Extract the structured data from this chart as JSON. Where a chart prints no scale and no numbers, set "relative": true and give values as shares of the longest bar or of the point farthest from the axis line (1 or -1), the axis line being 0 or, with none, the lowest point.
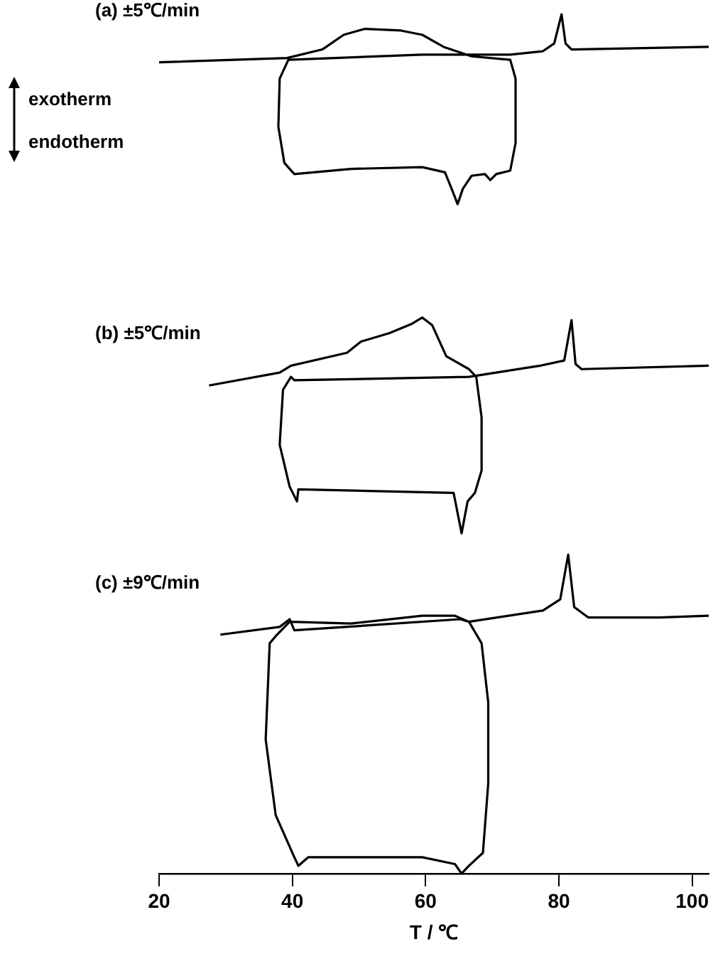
{
  "chart_data": {
    "type": "line",
    "relative": true,
    "xlabel": "T / ℃",
    "xlim": [
      20,
      102.5
    ],
    "xticks": [
      20,
      40,
      60,
      80,
      100
    ],
    "marker": "none",
    "line_style": "solid",
    "legend": false,
    "annotations": [
      "exotherm",
      "endotherm"
    ],
    "series": [
      {
        "name": "(a) ±5℃/min",
        "color": "#000000",
        "x": [
          20,
          39.2,
          44.5,
          47.7,
          50.9,
          56.3,
          59.5,
          62.7,
          66.9,
          72.7,
          73.5,
          73.5,
          72.7,
          70.6,
          69.7,
          68.9,
          66.9,
          65.6,
          64.8,
          63.9,
          62.9,
          59.5,
          48.8,
          40.3,
          38.8,
          37.9,
          38.1,
          39.4,
          59.5,
          72.7,
          77.6,
          79.3,
          80.4,
          81,
          81.9,
          102.5
        ],
        "values": [
          0.944,
          0.949,
          0.959,
          0.976,
          0.983,
          0.981,
          0.976,
          0.962,
          0.951,
          0.947,
          0.925,
          0.85,
          0.818,
          0.814,
          0.807,
          0.814,
          0.812,
          0.797,
          0.779,
          0.797,
          0.816,
          0.822,
          0.82,
          0.814,
          0.827,
          0.869,
          0.925,
          0.947,
          0.953,
          0.953,
          0.957,
          0.966,
          1,
          0.966,
          0.959,
          0.962
        ]
      },
      {
        "name": "(b) ±5℃/min",
        "color": "#000000",
        "x": [
          27.5,
          38.1,
          39.8,
          48.2,
          50.3,
          54.6,
          58,
          59.5,
          61,
          63.1,
          66.5,
          67.6,
          68.4,
          68.4,
          67.4,
          66.3,
          65.4,
          64.2,
          40.9,
          40.7,
          39.6,
          38.1,
          38.6,
          39.8,
          40.3,
          66.5,
          77.2,
          80.8,
          81.9,
          82.5,
          83.4,
          102.5
        ],
        "values": [
          0.568,
          0.583,
          0.591,
          0.606,
          0.619,
          0.629,
          0.64,
          0.647,
          0.638,
          0.602,
          0.587,
          0.578,
          0.531,
          0.469,
          0.443,
          0.433,
          0.396,
          0.443,
          0.447,
          0.433,
          0.45,
          0.499,
          0.563,
          0.578,
          0.574,
          0.578,
          0.591,
          0.597,
          0.644,
          0.593,
          0.587,
          0.591
        ]
      },
      {
        "name": "(c) ±9℃/min",
        "color": "#000000",
        "x": [
          29.2,
          38.1,
          39.6,
          40.3,
          65.2,
          66.5,
          68.4,
          69.4,
          69.4,
          68.6,
          66.5,
          65.4,
          64.4,
          59.5,
          42.4,
          40.9,
          40.3,
          37.5,
          36,
          36.6,
          37.7,
          39.6,
          48.8,
          59.5,
          64.4,
          66.5,
          77.6,
          80.2,
          81.4,
          82.3,
          84.4,
          95.1,
          102.5
        ],
        "values": [
          0.278,
          0.287,
          0.296,
          0.283,
          0.296,
          0.293,
          0.268,
          0.199,
          0.105,
          0.024,
          0.009,
          0,
          0.011,
          0.019,
          0.019,
          0.009,
          0.019,
          0.068,
          0.156,
          0.268,
          0.278,
          0.293,
          0.291,
          0.3,
          0.3,
          0.293,
          0.306,
          0.319,
          0.371,
          0.31,
          0.298,
          0.298,
          0.3
        ]
      }
    ]
  }
}
